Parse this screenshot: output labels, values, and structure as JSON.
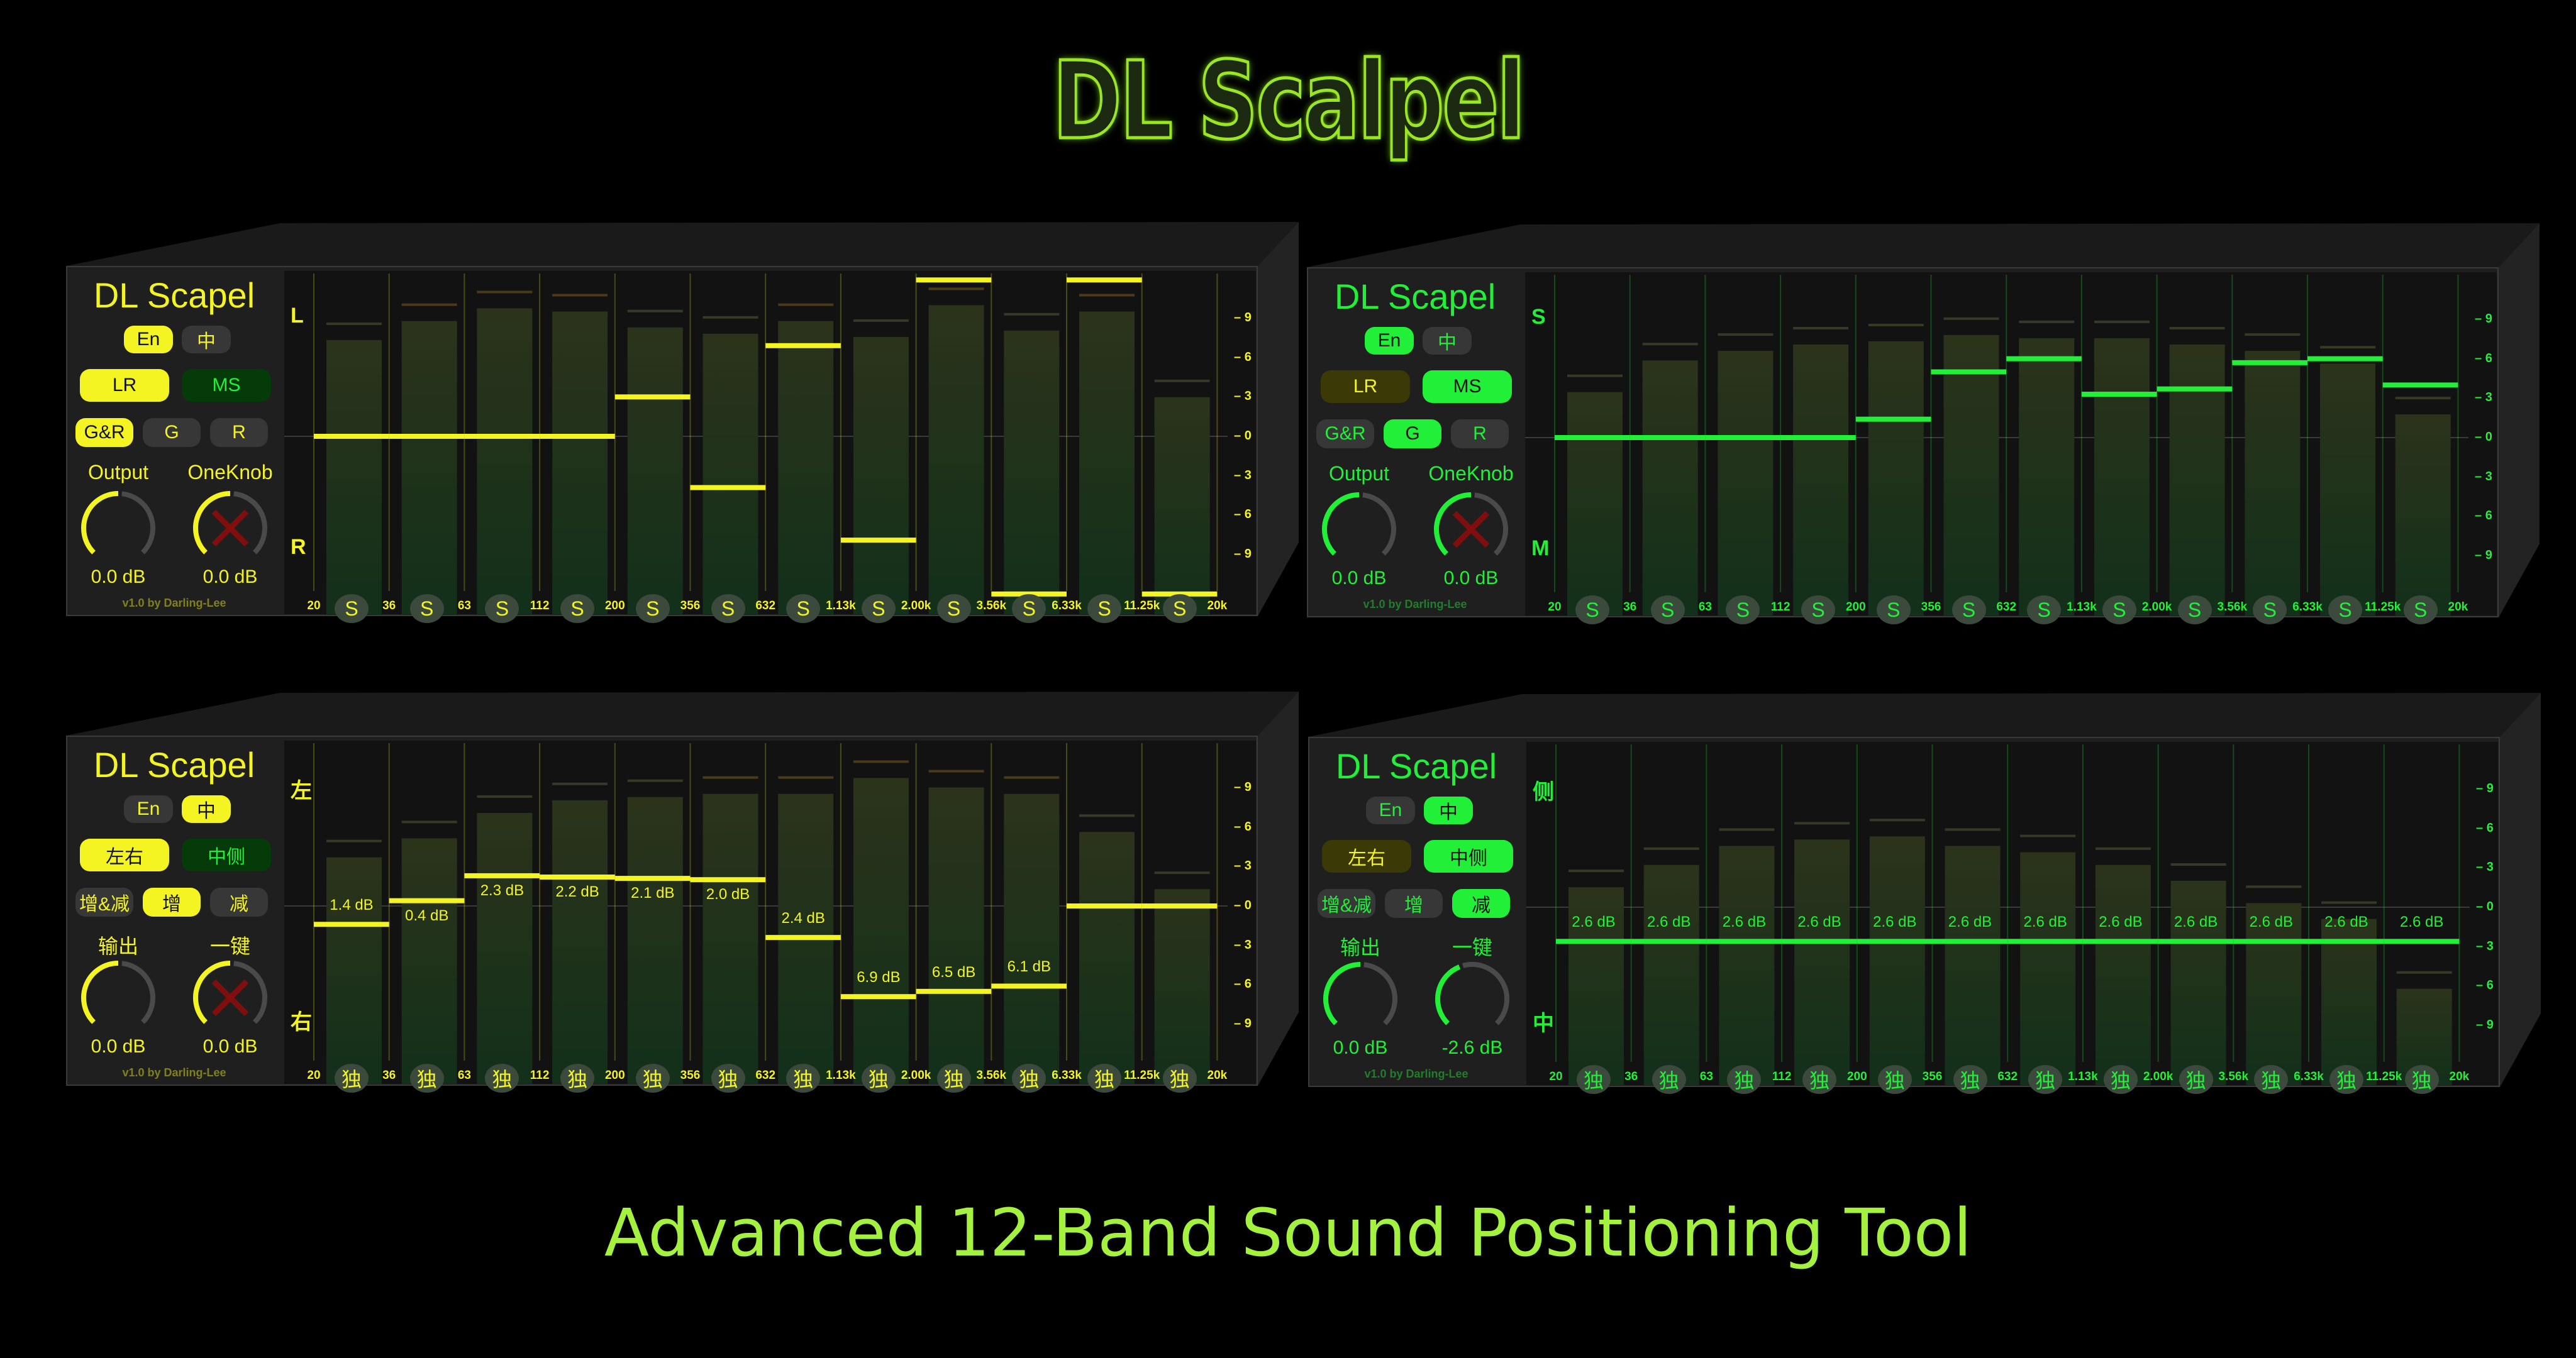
{
  "logo": "DL Scalpel",
  "tagline": "Advanced 12-Band Sound Positioning Tool",
  "colors": {
    "yellow": "#f4f423",
    "green": "#22f038",
    "background": "#000000"
  },
  "frequencies": [
    "20",
    "36",
    "63",
    "112",
    "200",
    "356",
    "632",
    "1.13k",
    "2.00k",
    "3.56k",
    "6.33k",
    "11.25k",
    "20k"
  ],
  "scale": {
    "labels": [
      "9",
      "6",
      "3",
      "0",
      "3",
      "6",
      "9"
    ],
    "values": [
      9,
      6,
      3,
      0,
      -3,
      -6,
      -9
    ]
  },
  "panels": [
    {
      "theme": "yellow",
      "title": "DL Scapel",
      "lang_buttons": [
        {
          "label": "En",
          "active": true
        },
        {
          "label": "中",
          "active": false
        }
      ],
      "mode_buttons": [
        {
          "label": "LR",
          "active": true
        },
        {
          "label": "MS",
          "active": false
        }
      ],
      "gain_buttons": [
        {
          "label": "G&R",
          "active": true
        },
        {
          "label": "G",
          "active": false
        },
        {
          "label": "R",
          "active": false
        }
      ],
      "knobs": [
        {
          "label": "Output",
          "value": "0.0 dB",
          "level": 0.5,
          "disabled": false
        },
        {
          "label": "OneKnob",
          "value": "0.0 dB",
          "level": 0.5,
          "disabled": true
        }
      ],
      "version": "v1.0 by Darling-Lee",
      "axis_top": "L",
      "axis_bottom": "R",
      "solo_label": "S",
      "bands": [
        {
          "gain": 0,
          "meter": 0.81
        },
        {
          "gain": 0,
          "meter": 0.87
        },
        {
          "gain": 0,
          "meter": 0.91
        },
        {
          "gain": 0,
          "meter": 0.9
        },
        {
          "gain": 3,
          "meter": 0.85
        },
        {
          "gain": -3.9,
          "meter": 0.83
        },
        {
          "gain": 6.9,
          "meter": 0.87
        },
        {
          "gain": -7.9,
          "meter": 0.82
        },
        {
          "gain": 11.9,
          "meter": 0.92
        },
        {
          "gain": -12,
          "meter": 0.84
        },
        {
          "gain": 11.9,
          "meter": 0.9
        },
        {
          "gain": -12,
          "meter": 0.63
        }
      ]
    },
    {
      "theme": "green",
      "title": "DL Scapel",
      "lang_buttons": [
        {
          "label": "En",
          "active": true
        },
        {
          "label": "中",
          "active": false
        }
      ],
      "mode_buttons": [
        {
          "label": "LR",
          "active": false
        },
        {
          "label": "MS",
          "active": true
        }
      ],
      "gain_buttons": [
        {
          "label": "G&R",
          "active": false
        },
        {
          "label": "G",
          "active": true
        },
        {
          "label": "R",
          "active": false
        }
      ],
      "knobs": [
        {
          "label": "Output",
          "value": "0.0 dB",
          "level": 0.5,
          "disabled": false
        },
        {
          "label": "OneKnob",
          "value": "0.0 dB",
          "level": 0.5,
          "disabled": true
        }
      ],
      "version": "v1.0 by Darling-Lee",
      "axis_top": "S",
      "axis_bottom": "M",
      "solo_label": "S",
      "bands": [
        {
          "gain": 0,
          "meter": 0.65
        },
        {
          "gain": 0,
          "meter": 0.75
        },
        {
          "gain": 0,
          "meter": 0.78
        },
        {
          "gain": 0,
          "meter": 0.8
        },
        {
          "gain": 1.4,
          "meter": 0.81
        },
        {
          "gain": 5,
          "meter": 0.83
        },
        {
          "gain": 6,
          "meter": 0.82
        },
        {
          "gain": 3.3,
          "meter": 0.82
        },
        {
          "gain": 3.7,
          "meter": 0.8
        },
        {
          "gain": 5.7,
          "meter": 0.78
        },
        {
          "gain": 6,
          "meter": 0.74
        },
        {
          "gain": 4,
          "meter": 0.58
        }
      ]
    },
    {
      "theme": "yellow",
      "title": "DL Scapel",
      "lang_buttons": [
        {
          "label": "En",
          "active": false
        },
        {
          "label": "中",
          "active": true
        }
      ],
      "mode_buttons": [
        {
          "label": "左右",
          "active": true
        },
        {
          "label": "中侧",
          "active": false
        }
      ],
      "gain_buttons": [
        {
          "label": "增&减",
          "active": false
        },
        {
          "label": "增",
          "active": true
        },
        {
          "label": "减",
          "active": false
        }
      ],
      "knobs": [
        {
          "label": "输出",
          "value": "0.0 dB",
          "level": 0.5,
          "disabled": false
        },
        {
          "label": "一键",
          "value": "0.0 dB",
          "level": 0.5,
          "disabled": true
        }
      ],
      "version": "v1.0 by Darling-Lee",
      "axis_top": "左",
      "axis_bottom": "右",
      "solo_label": "独",
      "bands": [
        {
          "gain": -1.4,
          "meter": 0.66,
          "label": "1.4 dB"
        },
        {
          "gain": 0.4,
          "meter": 0.72,
          "label": "0.4 dB"
        },
        {
          "gain": 2.3,
          "meter": 0.8,
          "label": "2.3 dB"
        },
        {
          "gain": 2.2,
          "meter": 0.84,
          "label": "2.2 dB"
        },
        {
          "gain": 2.1,
          "meter": 0.85,
          "label": "2.1 dB"
        },
        {
          "gain": 2.0,
          "meter": 0.86,
          "label": "2.0 dB"
        },
        {
          "gain": -2.4,
          "meter": 0.86,
          "label": "2.4 dB"
        },
        {
          "gain": -6.9,
          "meter": 0.91,
          "label": "6.9 dB"
        },
        {
          "gain": -6.5,
          "meter": 0.88,
          "label": "6.5 dB"
        },
        {
          "gain": -6.1,
          "meter": 0.86,
          "label": "6.1 dB"
        },
        {
          "gain": 0,
          "meter": 0.74
        },
        {
          "gain": 0,
          "meter": 0.56
        }
      ]
    },
    {
      "theme": "green",
      "title": "DL Scapel",
      "lang_buttons": [
        {
          "label": "En",
          "active": false
        },
        {
          "label": "中",
          "active": true
        }
      ],
      "mode_buttons": [
        {
          "label": "左右",
          "active": false
        },
        {
          "label": "中侧",
          "active": true
        }
      ],
      "gain_buttons": [
        {
          "label": "增&减",
          "active": false
        },
        {
          "label": "增",
          "active": false
        },
        {
          "label": "减",
          "active": true
        }
      ],
      "knobs": [
        {
          "label": "输出",
          "value": "0.0 dB",
          "level": 0.5,
          "disabled": false
        },
        {
          "label": "一键",
          "value": "-2.6 dB",
          "level": 0.42,
          "disabled": false
        }
      ],
      "version": "v1.0 by Darling-Lee",
      "axis_top": "侧",
      "axis_bottom": "中",
      "solo_label": "独",
      "bands": [
        {
          "gain": -2.6,
          "meter": 0.57,
          "label": "2.6 dB"
        },
        {
          "gain": -2.6,
          "meter": 0.64,
          "label": "2.6 dB"
        },
        {
          "gain": -2.6,
          "meter": 0.7,
          "label": "2.6 dB"
        },
        {
          "gain": -2.6,
          "meter": 0.72,
          "label": "2.6 dB"
        },
        {
          "gain": -2.6,
          "meter": 0.73,
          "label": "2.6 dB"
        },
        {
          "gain": -2.6,
          "meter": 0.7,
          "label": "2.6 dB"
        },
        {
          "gain": -2.6,
          "meter": 0.68,
          "label": "2.6 dB"
        },
        {
          "gain": -2.6,
          "meter": 0.64,
          "label": "2.6 dB"
        },
        {
          "gain": -2.6,
          "meter": 0.59,
          "label": "2.6 dB"
        },
        {
          "gain": -2.6,
          "meter": 0.52,
          "label": "2.6 dB"
        },
        {
          "gain": -2.6,
          "meter": 0.47,
          "label": "2.6 dB"
        },
        {
          "gain": -2.6,
          "meter": 0.25,
          "label": "2.6 dB"
        }
      ]
    }
  ]
}
